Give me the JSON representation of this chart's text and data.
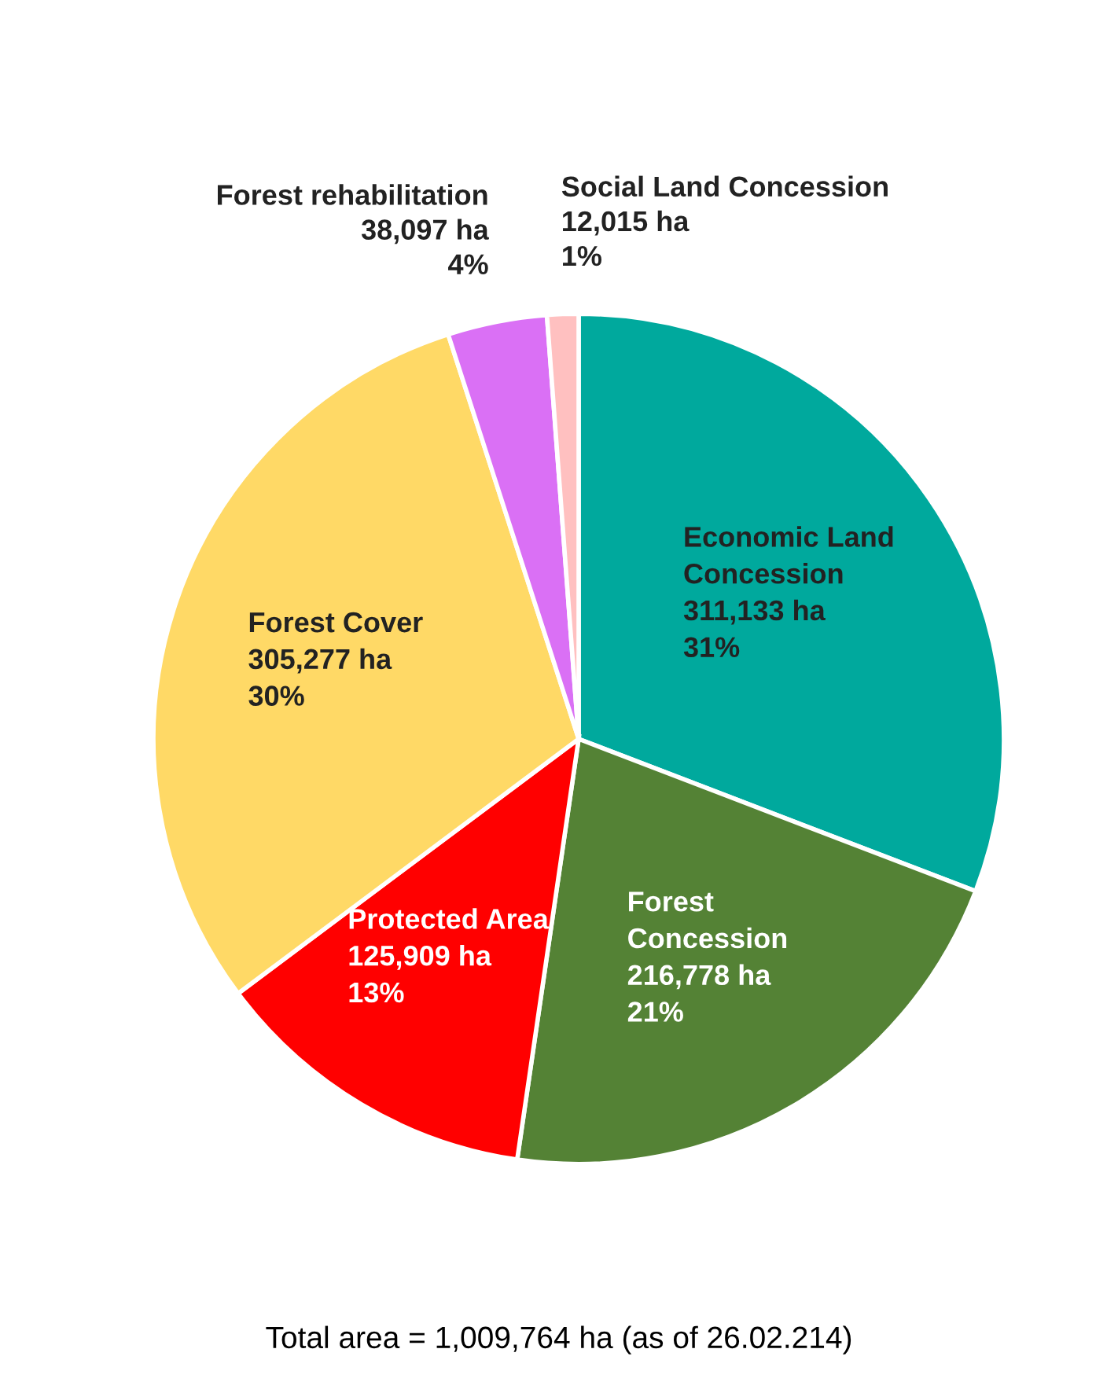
{
  "chart_data": {
    "type": "pie",
    "categories": [
      "Economic Land Concession",
      "Forest Concession",
      "Protected Area",
      "Forest Cover",
      "Forest rehabilitation",
      "Social Land Concession"
    ],
    "values": [
      311133,
      216778,
      125909,
      305277,
      38097,
      12015
    ],
    "value_labels": [
      "311,133 ha\n31%",
      "216,778 ha\n21%",
      "125,909 ha\n13%",
      "305,277 ha\n30%",
      "38,097 ha\n4%",
      "12,015 ha\n1%"
    ],
    "colors": [
      "#00a99d",
      "#548235",
      "#ff0000",
      "#ffd966",
      "#da70f5",
      "#ffc0c0"
    ],
    "annotations": [
      "Total area = 1,009,764 ha (as of 26.02.214)"
    ]
  }
}
